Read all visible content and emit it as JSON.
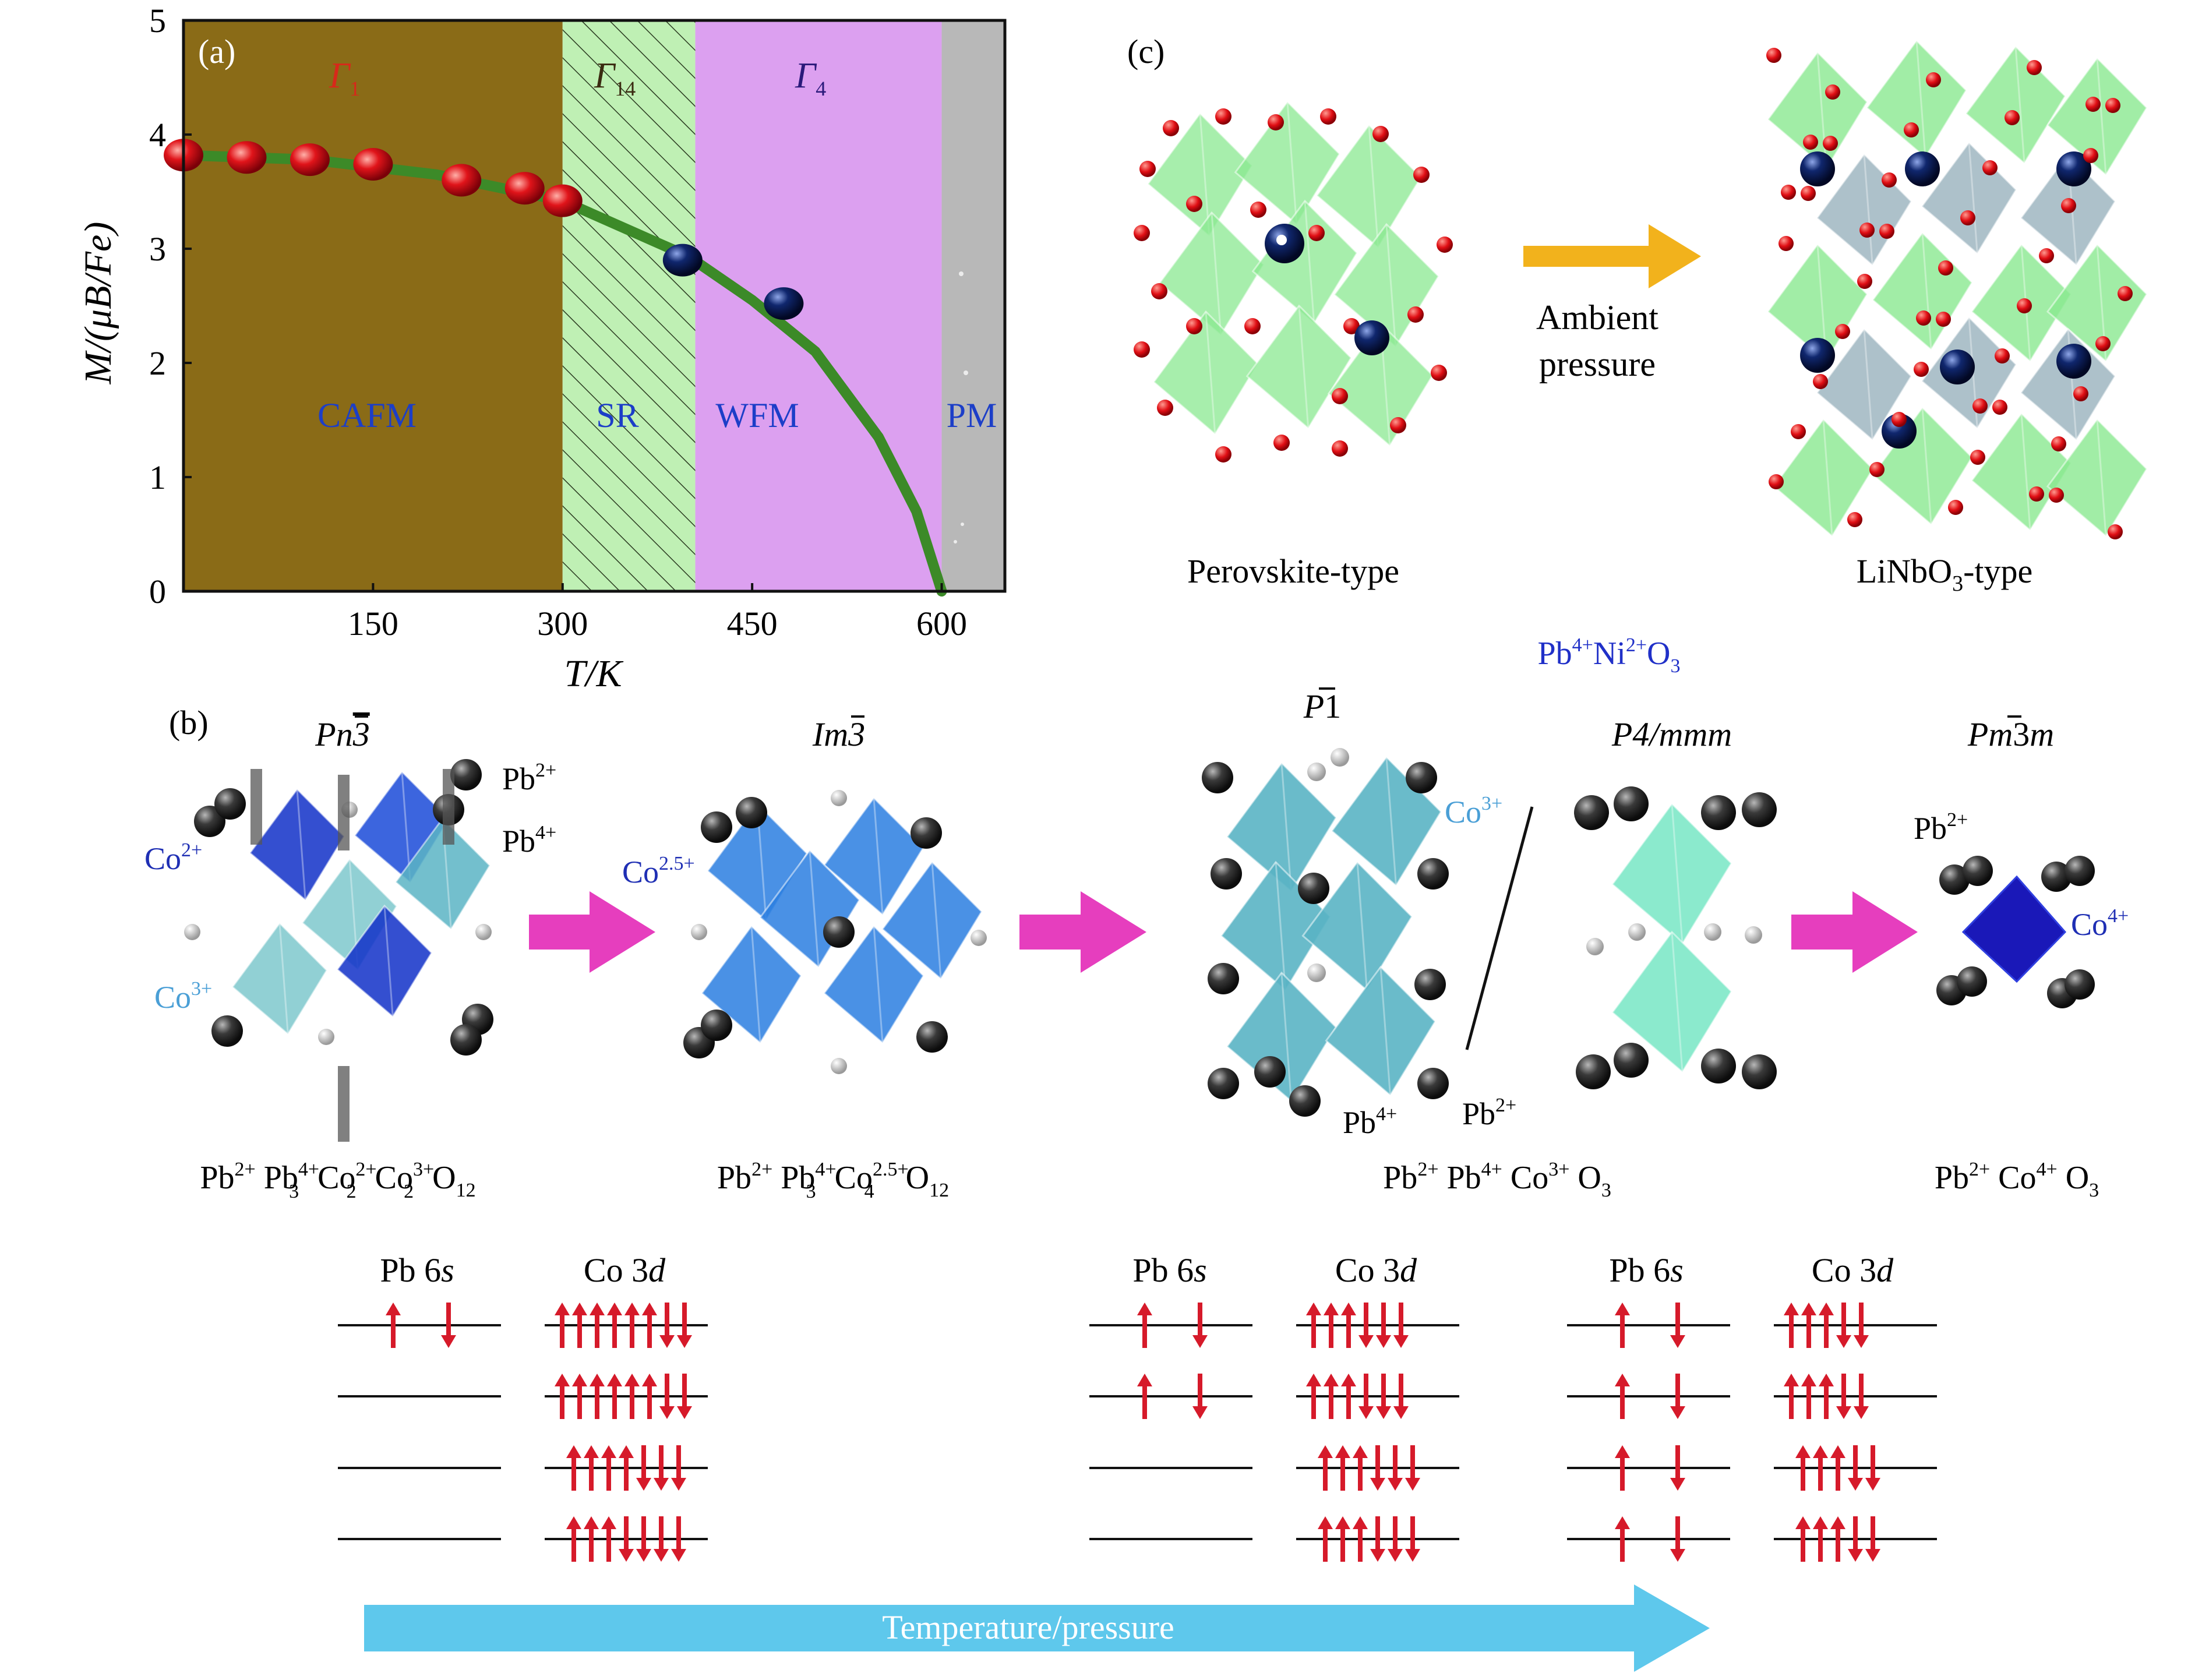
{
  "colors": {
    "cafm": "#8a6b17",
    "sr": "#bff0b4",
    "wfm": "#dca0f0",
    "pm": "#b8b8b8",
    "curve": "#3c8a28",
    "red_ball": "#e0141a",
    "blue_ball": "#0d1f5c",
    "arrow_magenta": "#e63ebe",
    "arrow_orange": "#f2b21c",
    "arrow_cyan": "#5ec8ec",
    "spin_red": "#d61a2a",
    "co_blue": "#1f2fb4",
    "co_light": "#4a9fd6",
    "oct_green": "#8ae890",
    "oct_teal": "#5ab4c4",
    "oct_dark": "#1030c8"
  },
  "panel_a": {
    "label": "(a)",
    "phases": [
      {
        "gamma_sub": "1",
        "name": "CAFM"
      },
      {
        "gamma_sub": "14",
        "name": "SR"
      },
      {
        "gamma_sub": "4",
        "name": "WFM"
      },
      {
        "gamma_sub": "",
        "name": "PM"
      }
    ],
    "y_axis_label": "M/(μB/Fe)",
    "x_axis_label": "T/K",
    "gamma_symbol": "Γ"
  },
  "chart_data": {
    "type": "scatter",
    "xlim": [
      0,
      650
    ],
    "ylim": [
      0,
      5
    ],
    "x_ticks": [
      150,
      300,
      450,
      600
    ],
    "y_ticks": [
      0,
      1,
      2,
      3,
      4,
      5
    ],
    "phase_boundaries": [
      300,
      405,
      600
    ],
    "series": [
      {
        "marker": "red",
        "x": [
          0,
          50,
          100,
          150,
          220,
          270,
          300
        ],
        "y": [
          3.82,
          3.8,
          3.78,
          3.74,
          3.6,
          3.53,
          3.42
        ]
      },
      {
        "marker": "blue",
        "x": [
          395,
          475
        ],
        "y": [
          2.9,
          2.52
        ]
      }
    ],
    "fit_curve": {
      "x": [
        0,
        100,
        200,
        300,
        400,
        450,
        500,
        550,
        580,
        600
      ],
      "y": [
        3.82,
        3.78,
        3.65,
        3.42,
        2.93,
        2.55,
        2.1,
        1.35,
        0.7,
        0
      ]
    }
  },
  "panel_c": {
    "label": "(c)",
    "left_caption": "Perovskite-type",
    "right_caption_a": "LiNbO",
    "right_caption_sub": "3",
    "right_caption_b": "-type",
    "arrow_line1": "Ambient",
    "arrow_line2": "pressure"
  },
  "panel_b": {
    "label": "(b)",
    "pbni": {
      "a": "Pb",
      "s1": "4+",
      "b": "Ni",
      "s2": "2+",
      "c": "O",
      "s3": "3"
    },
    "groups": {
      "pn3": {
        "a": "Pn",
        "b": "3"
      },
      "im3": {
        "a": "Im",
        "b": "3"
      },
      "p1": {
        "a": "P",
        "b": "1"
      },
      "p4mmm": {
        "a": "P",
        "b": "4/mmm"
      },
      "pm3m": {
        "a": "Pm",
        "b": "3",
        "c": "m"
      }
    },
    "ions": {
      "pb2": {
        "a": "Pb",
        "s": "2+"
      },
      "pb4": {
        "a": "Pb",
        "s": "4+"
      },
      "co2": {
        "a": "Co",
        "s": "2+"
      },
      "co3": {
        "a": "Co",
        "s": "3+"
      },
      "co25": {
        "a": "Co",
        "s": "2.5+"
      },
      "co4": {
        "a": "Co",
        "s": "4+"
      }
    },
    "formulas": {
      "f1": {
        "p1": "Pb",
        "p1s": "2+",
        "p2": "Pb",
        "p2s": "4+",
        "p2b": "3",
        "p3": "Co",
        "p3s": "2+",
        "p3b": "2",
        "p4": "Co",
        "p4s": "3+",
        "p4b": "2",
        "p5": "O",
        "p5b": "12"
      },
      "f2": {
        "p1": "Pb",
        "p1s": "2+",
        "p2": "Pb",
        "p2s": "4+",
        "p2b": "3",
        "p3": "Co",
        "p3s": "2.5+",
        "p3b": "4",
        "p5": "O",
        "p5b": "12"
      },
      "f3": {
        "p1": "Pb",
        "p1s": "2+",
        "p2": " Pb",
        "p2s": "4+",
        "p3": "Co",
        "p3s": "3+",
        "p5": "O",
        "p5b": "3"
      },
      "f4": {
        "p1": "Pb",
        "p1s": "2+",
        "p3": "Co",
        "p3s": "4+",
        "p5": "O",
        "p5b": "3"
      }
    },
    "orbitals": {
      "pb6s_a": "Pb 6",
      "pb6s_b": "s",
      "co3d_a": "Co 3",
      "co3d_b": "d"
    },
    "bottom_arrow_label": "Temperature/pressure"
  }
}
